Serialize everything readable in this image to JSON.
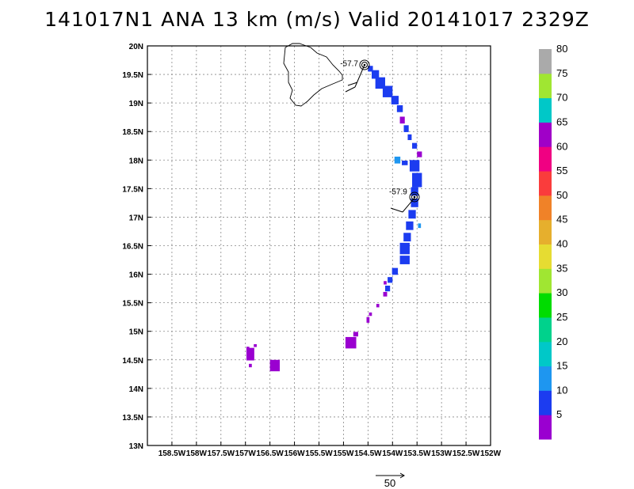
{
  "title": "141017N1 ANA 13 km (m/s) Valid 20141017  2329Z",
  "chart_data": {
    "type": "heatmap",
    "title": "141017N1 ANA 13 km (m/s) Valid 20141017  2329Z",
    "xlim": [
      -159,
      -152
    ],
    "ylim": [
      13,
      20
    ],
    "grid": true,
    "x_ticks": [
      {
        "value": -158.5,
        "label": "158.5W"
      },
      {
        "value": -158,
        "label": "158W"
      },
      {
        "value": -157.5,
        "label": "157.5W"
      },
      {
        "value": -157,
        "label": "157W"
      },
      {
        "value": -156.5,
        "label": "156.5W"
      },
      {
        "value": -156,
        "label": "156W"
      },
      {
        "value": -155.5,
        "label": "155.5W"
      },
      {
        "value": -155,
        "label": "155W"
      },
      {
        "value": -154.5,
        "label": "154.5W"
      },
      {
        "value": -154,
        "label": "154W"
      },
      {
        "value": -153.5,
        "label": "153.5W"
      },
      {
        "value": -153,
        "label": "153W"
      },
      {
        "value": -152.5,
        "label": "152.5W"
      },
      {
        "value": -152,
        "label": "152W"
      }
    ],
    "y_ticks": [
      {
        "value": 13,
        "label": "13N"
      },
      {
        "value": 13.5,
        "label": "13.5N"
      },
      {
        "value": 14,
        "label": "14N"
      },
      {
        "value": 14.5,
        "label": "14.5N"
      },
      {
        "value": 15,
        "label": "15N"
      },
      {
        "value": 15.5,
        "label": "15.5N"
      },
      {
        "value": 16,
        "label": "16N"
      },
      {
        "value": 16.5,
        "label": "16.5N"
      },
      {
        "value": 17,
        "label": "17N"
      },
      {
        "value": 17.5,
        "label": "17.5N"
      },
      {
        "value": 18,
        "label": "18N"
      },
      {
        "value": 18.5,
        "label": "18.5N"
      },
      {
        "value": 19,
        "label": "19N"
      },
      {
        "value": 19.5,
        "label": "19.5N"
      },
      {
        "value": 20,
        "label": "20N"
      }
    ],
    "colorbar": [
      {
        "label": "5",
        "color": "#9a00d0"
      },
      {
        "label": "10",
        "color": "#1c3cf0"
      },
      {
        "label": "15",
        "color": "#1e96f0"
      },
      {
        "label": "20",
        "color": "#00c8c8"
      },
      {
        "label": "25",
        "color": "#00d28c"
      },
      {
        "label": "30",
        "color": "#00dc00"
      },
      {
        "label": "35",
        "color": "#a0e632"
      },
      {
        "label": "40",
        "color": "#e6dc32"
      },
      {
        "label": "45",
        "color": "#e6af2d"
      },
      {
        "label": "50",
        "color": "#f08228"
      },
      {
        "label": "55",
        "color": "#fa3c3c"
      },
      {
        "label": "60",
        "color": "#f00082"
      },
      {
        "label": "65",
        "color": "#a000c8"
      },
      {
        "label": "70",
        "color": "#00c8c8"
      },
      {
        "label": "75",
        "color": "#a0e632"
      },
      {
        "label": "80",
        "color": "#aaaaaa"
      }
    ],
    "annotations": [
      {
        "text": "-57.7",
        "lon": -154.7,
        "lat": 19.65
      },
      {
        "text": "-57.9",
        "lon": -153.7,
        "lat": 17.4
      }
    ],
    "vector_scale_label": "50",
    "cells": [
      {
        "lon": -154.45,
        "lat": 19.6,
        "w": 0.1,
        "h": 0.1,
        "level": 1
      },
      {
        "lon": -154.35,
        "lat": 19.5,
        "w": 0.15,
        "h": 0.15,
        "level": 1
      },
      {
        "lon": -154.25,
        "lat": 19.35,
        "w": 0.2,
        "h": 0.2,
        "level": 1
      },
      {
        "lon": -154.1,
        "lat": 19.2,
        "w": 0.2,
        "h": 0.2,
        "level": 1
      },
      {
        "lon": -153.95,
        "lat": 19.05,
        "w": 0.15,
        "h": 0.15,
        "level": 1
      },
      {
        "lon": -153.85,
        "lat": 18.9,
        "w": 0.12,
        "h": 0.12,
        "level": 1
      },
      {
        "lon": -153.8,
        "lat": 18.7,
        "w": 0.1,
        "h": 0.12,
        "level": 0
      },
      {
        "lon": -153.72,
        "lat": 18.55,
        "w": 0.1,
        "h": 0.12,
        "level": 1
      },
      {
        "lon": -153.65,
        "lat": 18.4,
        "w": 0.08,
        "h": 0.1,
        "level": 1
      },
      {
        "lon": -153.55,
        "lat": 18.25,
        "w": 0.1,
        "h": 0.1,
        "level": 1
      },
      {
        "lon": -153.45,
        "lat": 18.1,
        "w": 0.1,
        "h": 0.1,
        "level": 0
      },
      {
        "lon": -153.55,
        "lat": 17.9,
        "w": 0.2,
        "h": 0.2,
        "level": 1
      },
      {
        "lon": -153.5,
        "lat": 17.65,
        "w": 0.2,
        "h": 0.25,
        "level": 1
      },
      {
        "lon": -153.55,
        "lat": 17.45,
        "w": 0.15,
        "h": 0.15,
        "level": 1
      },
      {
        "lon": -153.9,
        "lat": 18.0,
        "w": 0.12,
        "h": 0.12,
        "level": 2
      },
      {
        "lon": -153.75,
        "lat": 17.95,
        "w": 0.12,
        "h": 0.08,
        "level": 1
      },
      {
        "lon": -153.55,
        "lat": 17.25,
        "w": 0.15,
        "h": 0.15,
        "level": 1
      },
      {
        "lon": -153.6,
        "lat": 17.05,
        "w": 0.15,
        "h": 0.15,
        "level": 1
      },
      {
        "lon": -153.65,
        "lat": 16.85,
        "w": 0.15,
        "h": 0.15,
        "level": 1
      },
      {
        "lon": -153.45,
        "lat": 16.85,
        "w": 0.06,
        "h": 0.08,
        "level": 2
      },
      {
        "lon": -153.7,
        "lat": 16.65,
        "w": 0.15,
        "h": 0.15,
        "level": 1
      },
      {
        "lon": -153.75,
        "lat": 16.45,
        "w": 0.2,
        "h": 0.2,
        "level": 1
      },
      {
        "lon": -153.75,
        "lat": 16.25,
        "w": 0.2,
        "h": 0.15,
        "level": 1
      },
      {
        "lon": -153.95,
        "lat": 16.05,
        "w": 0.12,
        "h": 0.12,
        "level": 1
      },
      {
        "lon": -154.05,
        "lat": 15.9,
        "w": 0.1,
        "h": 0.1,
        "level": 1
      },
      {
        "lon": -154.1,
        "lat": 15.75,
        "w": 0.1,
        "h": 0.1,
        "level": 1
      },
      {
        "lon": -154.15,
        "lat": 15.65,
        "w": 0.08,
        "h": 0.08,
        "level": 0
      },
      {
        "lon": -154.15,
        "lat": 15.85,
        "w": 0.06,
        "h": 0.06,
        "level": 0
      },
      {
        "lon": -154.3,
        "lat": 15.45,
        "w": 0.06,
        "h": 0.06,
        "level": 0
      },
      {
        "lon": -154.45,
        "lat": 15.3,
        "w": 0.06,
        "h": 0.06,
        "level": 0
      },
      {
        "lon": -154.5,
        "lat": 15.2,
        "w": 0.06,
        "h": 0.1,
        "level": 0
      },
      {
        "lon": -154.85,
        "lat": 14.8,
        "w": 0.22,
        "h": 0.2,
        "level": 0
      },
      {
        "lon": -154.75,
        "lat": 14.95,
        "w": 0.1,
        "h": 0.08,
        "level": 0
      },
      {
        "lon": -156.9,
        "lat": 14.6,
        "w": 0.16,
        "h": 0.22,
        "level": 0
      },
      {
        "lon": -156.95,
        "lat": 14.7,
        "w": 0.06,
        "h": 0.06,
        "level": 0
      },
      {
        "lon": -156.8,
        "lat": 14.75,
        "w": 0.06,
        "h": 0.05,
        "level": 0
      },
      {
        "lon": -156.9,
        "lat": 14.4,
        "w": 0.06,
        "h": 0.06,
        "level": 0
      },
      {
        "lon": -156.4,
        "lat": 14.4,
        "w": 0.2,
        "h": 0.2,
        "level": 0
      }
    ]
  }
}
